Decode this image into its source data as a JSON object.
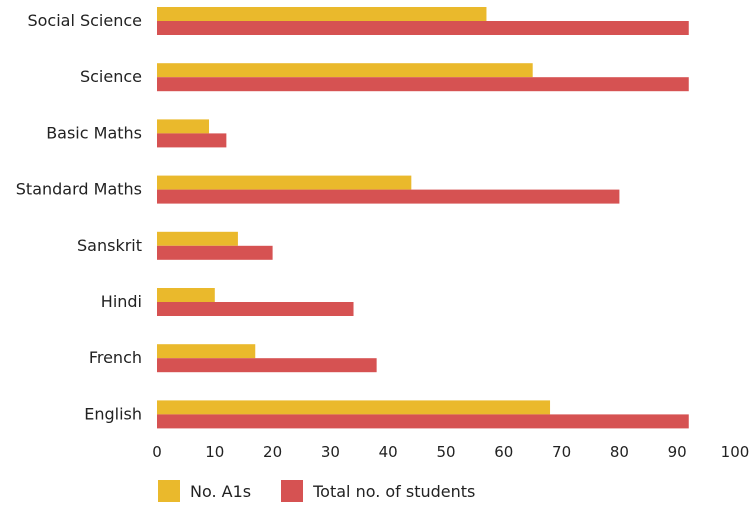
{
  "chart_data": {
    "type": "bar",
    "orientation": "horizontal",
    "categories": [
      "Social Science",
      "Science",
      "Basic Maths",
      "Standard Maths",
      "Sanskrit",
      "Hindi",
      "French",
      "English"
    ],
    "series": [
      {
        "name": "No. A1s",
        "color": "#eab92c",
        "values": [
          57,
          65,
          9,
          44,
          14,
          10,
          17,
          68
        ]
      },
      {
        "name": "Total no. of students",
        "color": "#d65252",
        "values": [
          92,
          92,
          12,
          80,
          20,
          34,
          38,
          92
        ]
      }
    ],
    "xlim": [
      0,
      100
    ],
    "xticks": [
      "0",
      "10",
      "20",
      "30",
      "40",
      "50",
      "60",
      "70",
      "80",
      "90",
      "100"
    ],
    "grid": false,
    "legend_position": "bottom-left"
  }
}
